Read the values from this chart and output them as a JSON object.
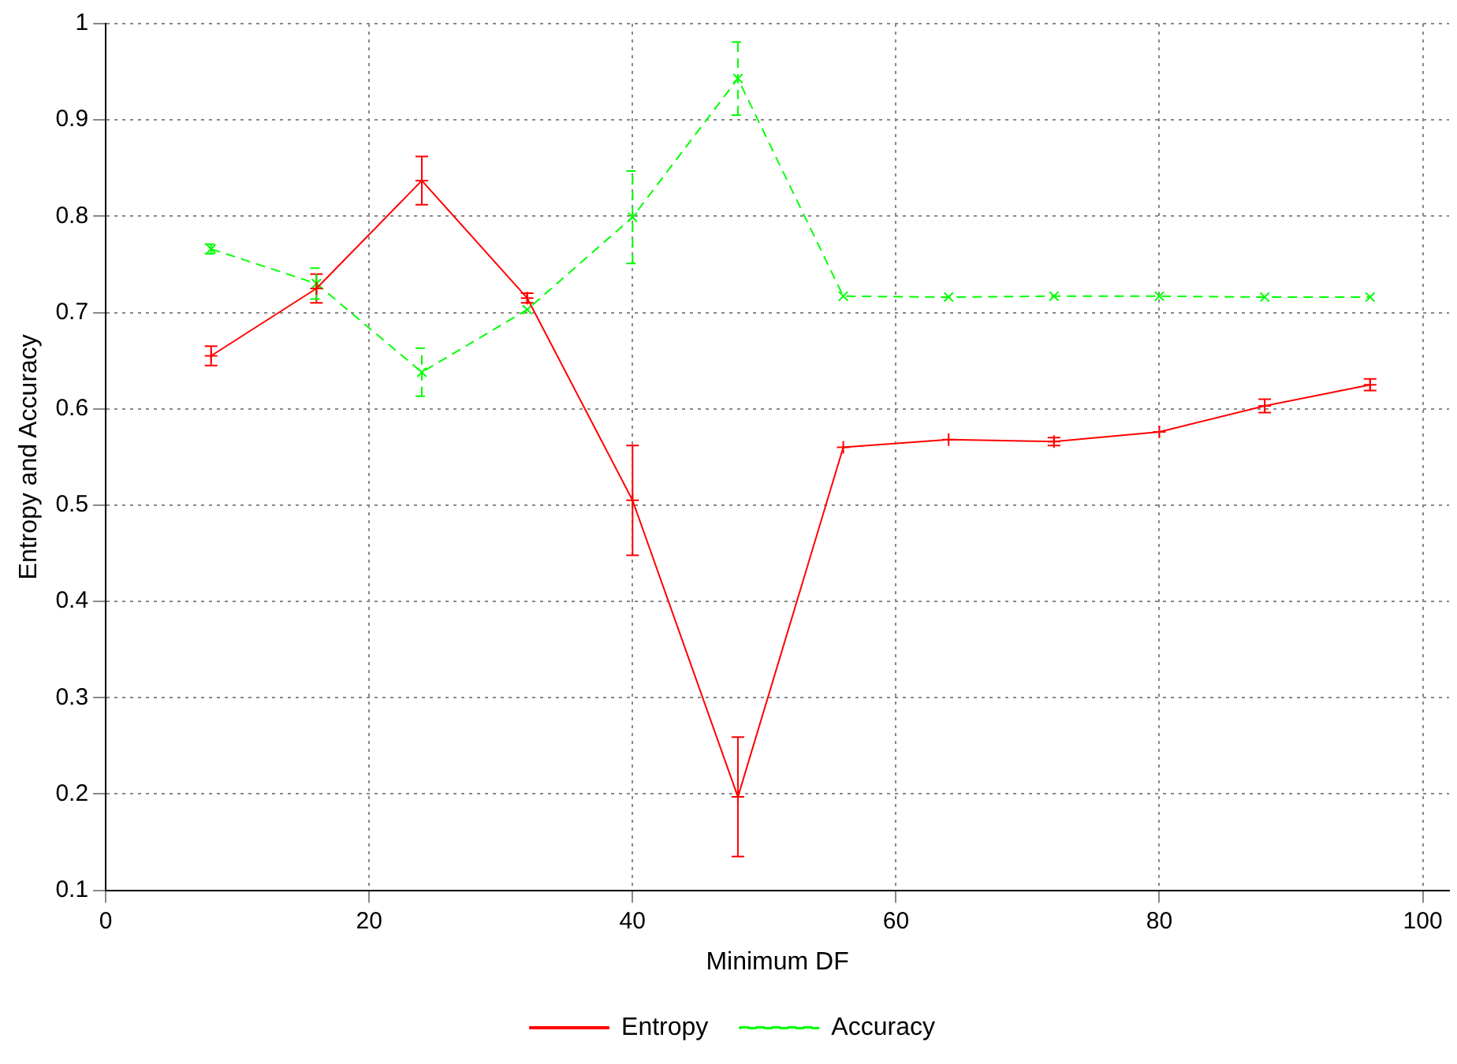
{
  "chart_data": {
    "type": "line",
    "xlabel": "Minimum DF",
    "ylabel": "Entropy and Accuracy",
    "x": [
      8,
      16,
      24,
      32,
      40,
      48,
      56,
      64,
      72,
      80,
      88,
      96
    ],
    "series": [
      {
        "name": "Entropy",
        "color": "#ff0000",
        "marker": "plus",
        "line_style": "solid",
        "values": [
          0.655,
          0.725,
          0.837,
          0.715,
          0.505,
          0.197,
          0.56,
          0.568,
          0.566,
          0.576,
          0.603,
          0.625
        ],
        "errors": [
          0.01,
          0.015,
          0.025,
          0.005,
          0.057,
          0.062,
          null,
          null,
          0.004,
          null,
          0.007,
          0.006
        ]
      },
      {
        "name": "Accuracy",
        "color": "#00ff00",
        "marker": "cross",
        "line_style": "dashed",
        "values": [
          0.766,
          0.73,
          0.638,
          0.703,
          0.799,
          0.943,
          0.717,
          0.716,
          0.717,
          0.717,
          0.716,
          0.716
        ],
        "errors": [
          0.005,
          0.016,
          0.025,
          null,
          0.048,
          0.038,
          null,
          null,
          null,
          null,
          null,
          null
        ]
      }
    ],
    "xlim": [
      0,
      102
    ],
    "xticks": [
      0,
      20,
      40,
      60,
      80,
      100
    ],
    "ylim": [
      0.1,
      1
    ],
    "yticks": [
      0.1,
      0.2,
      0.3,
      0.4,
      0.5,
      0.6,
      0.7,
      0.8,
      0.9,
      1
    ],
    "grid": true,
    "legend": "bottom"
  }
}
